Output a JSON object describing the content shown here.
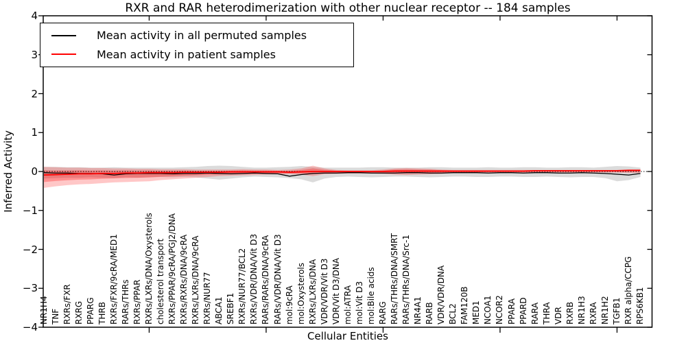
{
  "title": "RXR and RAR heterodimerization with other nuclear receptor -- 184 samples",
  "axes": {
    "xlabel": "Cellular Entities",
    "ylabel": "Inferred Activity",
    "ylim": [
      -4,
      4
    ],
    "ytick_values": [
      4,
      3,
      2,
      1,
      0,
      -1,
      -2,
      -3,
      -4
    ],
    "ytick_labels": [
      "4",
      "3",
      "2",
      "1",
      "0",
      "−1",
      "−2",
      "−3",
      "−4"
    ]
  },
  "legend": {
    "items": [
      {
        "label": "Mean activity in all permuted samples",
        "color": "#000000"
      },
      {
        "label": "Mean activity in patient samples",
        "color": "#ff0000"
      }
    ]
  },
  "colors": {
    "permuted_line": "#000000",
    "patient_line": "#ff0000",
    "permuted_band": "#909090",
    "patient_band": "#ff0000",
    "zero_line": "#000000",
    "frame": "#000000",
    "background": "#ffffff"
  },
  "chart_data": {
    "type": "line",
    "title": "RXR and RAR heterodimerization with other nuclear receptor -- 184 samples",
    "xlabel": "Cellular Entities",
    "ylabel": "Inferred Activity",
    "ylim": [
      -4,
      4
    ],
    "grid": false,
    "legend_position": "upper left",
    "zero_line": true,
    "x_major_tick_indices": [
      9,
      19,
      29,
      39,
      49
    ],
    "categories": [
      "NR1H4",
      "TNF",
      "RXRs/FXR",
      "RXRG",
      "PPARG",
      "THRB",
      "RXRs/FXR/9cRA/MED1",
      "RARs/THRs",
      "RXRs/PPAR",
      "RXRs/LXRs/DNA/Oxysterols",
      "cholesterol transport",
      "RXRs/PPAR/9cRA/PGJ2/DNA",
      "RXRs/RXRs/DNA/9cRA",
      "RXRs/LXRs/DNA/9cRA",
      "RXRs/NUR77",
      "ABCA1",
      "SREBF1",
      "RXRs/NUR77/BCL2",
      "RXRs/VDR/DNA/Vit D3",
      "RARs/RARs/DNA/9cRA",
      "RARs/VDR/DNA/Vit D3",
      "mol:9cRA",
      "mol:Oxysterols",
      "RXRs/LXRs/DNA",
      "VDR/VDR/Vit D3",
      "VDR/Vit D3/DNA",
      "mol:ATRA",
      "mol:Vit D3",
      "mol:Bile acids",
      "RARG",
      "RARs/THRs/DNA/SMRT",
      "RARs/THRs/DNA/Src-1",
      "NR4A1",
      "RARB",
      "VDR/VDR/DNA",
      "BCL2",
      "FAM120B",
      "MED1",
      "NCOA1",
      "NCOR2",
      "PPARA",
      "PPARD",
      "RARA",
      "THRA",
      "VDR",
      "RXRB",
      "NR1H3",
      "RXRA",
      "NR1H2",
      "TGFB1",
      "RXR alpha/CCPG",
      "RPS6KB1"
    ],
    "series": [
      {
        "name": "Mean activity in all permuted samples",
        "type": "line",
        "color": "#000000",
        "width": 1.3,
        "values": [
          -0.03,
          -0.04,
          -0.04,
          -0.05,
          -0.05,
          -0.06,
          -0.09,
          -0.06,
          -0.05,
          -0.05,
          -0.05,
          -0.06,
          -0.05,
          -0.05,
          -0.04,
          -0.05,
          -0.06,
          -0.05,
          -0.04,
          -0.05,
          -0.06,
          -0.12,
          -0.08,
          -0.05,
          -0.04,
          -0.04,
          -0.03,
          -0.03,
          -0.04,
          -0.04,
          -0.04,
          -0.03,
          -0.03,
          -0.04,
          -0.04,
          -0.03,
          -0.03,
          -0.03,
          -0.04,
          -0.03,
          -0.03,
          -0.04,
          -0.03,
          -0.03,
          -0.04,
          -0.04,
          -0.03,
          -0.04,
          -0.05,
          -0.07,
          -0.09,
          -0.05
        ]
      },
      {
        "name": "Mean activity in patient samples",
        "type": "line",
        "color": "#ff0000",
        "width": 1.8,
        "values": [
          -0.09,
          -0.08,
          -0.07,
          -0.06,
          -0.06,
          -0.05,
          -0.05,
          -0.04,
          -0.04,
          -0.03,
          -0.03,
          -0.03,
          -0.02,
          -0.02,
          -0.02,
          -0.02,
          -0.01,
          -0.01,
          -0.01,
          -0.01,
          -0.01,
          -0.02,
          -0.01,
          0,
          0,
          0,
          0,
          0,
          0,
          0,
          0.01,
          0.01,
          0.01,
          0.01,
          0.01,
          0.01,
          0.01,
          0.01,
          0.01,
          0.01,
          0.01,
          0.01,
          0.02,
          0.02,
          0.02,
          0.02,
          0.02,
          0.02,
          0.02,
          0.02,
          0.03,
          0.03
        ]
      },
      {
        "name": "Permuted samples range",
        "type": "band",
        "color": "#909090",
        "opacity": 0.32,
        "upper": [
          0.12,
          0.12,
          0.11,
          0.11,
          0.1,
          0.1,
          0.11,
          0.1,
          0.1,
          0.1,
          0.1,
          0.1,
          0.11,
          0.12,
          0.14,
          0.15,
          0.14,
          0.12,
          0.1,
          0.1,
          0.11,
          0.12,
          0.14,
          0.12,
          0.1,
          0.1,
          0.1,
          0.1,
          0.11,
          0.11,
          0.1,
          0.1,
          0.1,
          0.11,
          0.11,
          0.1,
          0.1,
          0.1,
          0.11,
          0.1,
          0.1,
          0.11,
          0.11,
          0.1,
          0.1,
          0.11,
          0.11,
          0.1,
          0.12,
          0.14,
          0.13,
          0.1
        ],
        "lower": [
          -0.18,
          -0.17,
          -0.16,
          -0.16,
          -0.15,
          -0.16,
          -0.17,
          -0.15,
          -0.16,
          -0.15,
          -0.14,
          -0.15,
          -0.14,
          -0.15,
          -0.18,
          -0.21,
          -0.18,
          -0.15,
          -0.13,
          -0.14,
          -0.15,
          -0.17,
          -0.2,
          -0.28,
          -0.18,
          -0.14,
          -0.13,
          -0.14,
          -0.15,
          -0.14,
          -0.13,
          -0.13,
          -0.14,
          -0.15,
          -0.14,
          -0.13,
          -0.13,
          -0.14,
          -0.14,
          -0.13,
          -0.13,
          -0.14,
          -0.14,
          -0.13,
          -0.14,
          -0.15,
          -0.14,
          -0.14,
          -0.17,
          -0.25,
          -0.22,
          -0.14
        ]
      },
      {
        "name": "Patient samples range",
        "type": "band",
        "color": "#ff0000",
        "opacity": 0.22,
        "core_scale": 0.55,
        "core_ref": 1,
        "upper": [
          0.12,
          0.11,
          0.1,
          0.1,
          0.09,
          0.09,
          0.08,
          0.08,
          0.07,
          0.07,
          0.06,
          0.06,
          0.06,
          0.05,
          0.05,
          0.05,
          0.05,
          0.06,
          0.05,
          0.05,
          0.04,
          0.05,
          0.08,
          0.15,
          0.08,
          0.04,
          0.03,
          0.03,
          0.03,
          0.05,
          0.08,
          0.09,
          0.08,
          0.07,
          0.05,
          0.04,
          0.04,
          0.04,
          0.04,
          0.04,
          0.04,
          0.04,
          0.04,
          0.04,
          0.04,
          0.04,
          0.04,
          0.04,
          0.04,
          0.04,
          0.05,
          0.05
        ],
        "lower": [
          -0.42,
          -0.38,
          -0.35,
          -0.33,
          -0.32,
          -0.3,
          -0.28,
          -0.27,
          -0.26,
          -0.25,
          -0.22,
          -0.2,
          -0.18,
          -0.16,
          -0.14,
          -0.12,
          -0.11,
          -0.1,
          -0.09,
          -0.08,
          -0.07,
          -0.07,
          -0.08,
          -0.12,
          -0.07,
          -0.06,
          -0.05,
          -0.05,
          -0.05,
          -0.06,
          -0.08,
          -0.09,
          -0.08,
          -0.07,
          -0.06,
          -0.04,
          -0.04,
          -0.04,
          -0.03,
          -0.03,
          -0.03,
          -0.03,
          -0.03,
          -0.03,
          -0.03,
          -0.03,
          -0.03,
          -0.03,
          -0.03,
          -0.03,
          -0.04,
          -0.04
        ]
      }
    ]
  }
}
